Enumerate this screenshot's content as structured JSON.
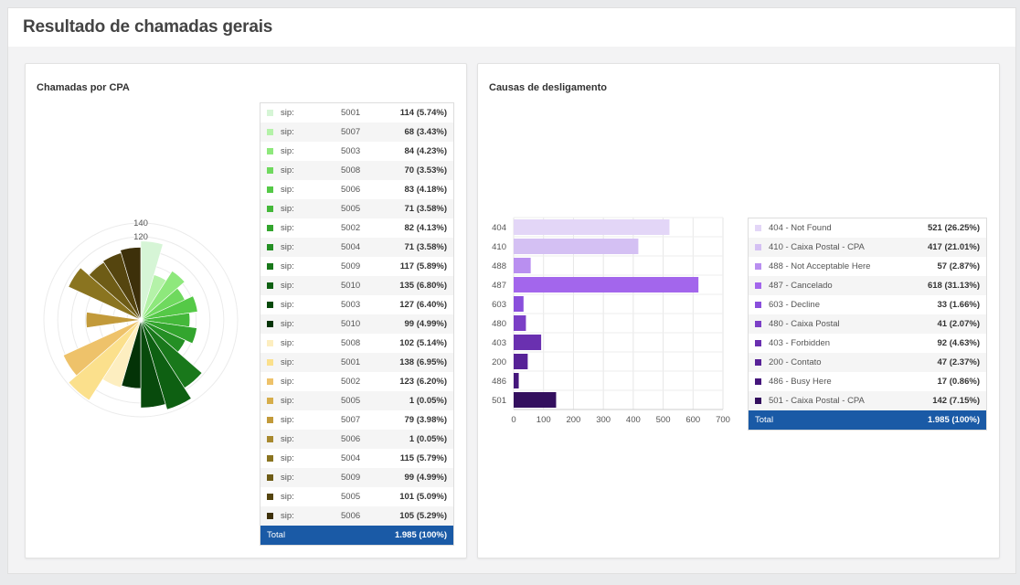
{
  "header": {
    "title": "Resultado de chamadas gerais"
  },
  "colors": {
    "total_bg": "#1a5aa6"
  },
  "cpa_card": {
    "title": "Chamadas por CPA",
    "total_label": "Total",
    "total_value": "1.985 (100%)",
    "rows": [
      {
        "proto": "sip:",
        "ext": "5001",
        "value": "114 (5.74%)",
        "color": "#d6f5d6"
      },
      {
        "proto": "sip:",
        "ext": "5007",
        "value": "68 (3.43%)",
        "color": "#b4f2a8"
      },
      {
        "proto": "sip:",
        "ext": "5003",
        "value": "84 (4.23%)",
        "color": "#8ee87c"
      },
      {
        "proto": "sip:",
        "ext": "5008",
        "value": "70 (3.53%)",
        "color": "#6fd95e"
      },
      {
        "proto": "sip:",
        "ext": "5006",
        "value": "83 (4.18%)",
        "color": "#55c947"
      },
      {
        "proto": "sip:",
        "ext": "5005",
        "value": "71 (3.58%)",
        "color": "#44b83a"
      },
      {
        "proto": "sip:",
        "ext": "5002",
        "value": "82 (4.13%)",
        "color": "#33a52e"
      },
      {
        "proto": "sip:",
        "ext": "5004",
        "value": "71 (3.58%)",
        "color": "#248f24"
      },
      {
        "proto": "sip:",
        "ext": "5009",
        "value": "117 (5.89%)",
        "color": "#19781b"
      },
      {
        "proto": "sip:",
        "ext": "5010",
        "value": "135 (6.80%)",
        "color": "#0e6012"
      },
      {
        "proto": "sip:",
        "ext": "5003",
        "value": "127 (6.40%)",
        "color": "#084a0c"
      },
      {
        "proto": "sip:",
        "ext": "5010",
        "value": "99 (4.99%)",
        "color": "#043307"
      },
      {
        "proto": "sip:",
        "ext": "5008",
        "value": "102 (5.14%)",
        "color": "#fdeec0"
      },
      {
        "proto": "sip:",
        "ext": "5001",
        "value": "138 (6.95%)",
        "color": "#fbe08c"
      },
      {
        "proto": "sip:",
        "ext": "5002",
        "value": "123 (6.20%)",
        "color": "#eec26a"
      },
      {
        "proto": "sip:",
        "ext": "5005",
        "value": "1 (0.05%)",
        "color": "#d6ad4a"
      },
      {
        "proto": "sip:",
        "ext": "5007",
        "value": "79 (3.98%)",
        "color": "#c29a3a"
      },
      {
        "proto": "sip:",
        "ext": "5006",
        "value": "1 (0.05%)",
        "color": "#a8892e"
      },
      {
        "proto": "sip:",
        "ext": "5004",
        "value": "115 (5.79%)",
        "color": "#8a7420"
      },
      {
        "proto": "sip:",
        "ext": "5009",
        "value": "99 (4.99%)",
        "color": "#6e5c16"
      },
      {
        "proto": "sip:",
        "ext": "5005",
        "value": "101 (5.09%)",
        "color": "#55450f"
      },
      {
        "proto": "sip:",
        "ext": "5006",
        "value": "105 (5.29%)",
        "color": "#3d300a"
      }
    ]
  },
  "hangup_card": {
    "title": "Causas de desligamento",
    "total_label": "Total",
    "total_value": "1.985 (100%)",
    "rows": [
      {
        "label": "404 - Not Found",
        "value": "521 (26.25%)",
        "color": "#e3d6f7"
      },
      {
        "label": "410 - Caixa Postal - CPA",
        "value": "417 (21.01%)",
        "color": "#d4c0f3"
      },
      {
        "label": "488 - Not Acceptable Here",
        "value": "57 (2.87%)",
        "color": "#b98ff0"
      },
      {
        "label": "487 - Cancelado",
        "value": "618 (31.13%)",
        "color": "#a366ec"
      },
      {
        "label": "603 - Decline",
        "value": "33 (1.66%)",
        "color": "#8a4fdc"
      },
      {
        "label": "480 - Caixa Postal",
        "value": "41 (2.07%)",
        "color": "#7b3fc6"
      },
      {
        "label": "403 - Forbidden",
        "value": "92 (4.63%)",
        "color": "#6a30b0"
      },
      {
        "label": "200 - Contato",
        "value": "47 (2.37%)",
        "color": "#572297"
      },
      {
        "label": "486 - Busy Here",
        "value": "17 (0.86%)",
        "color": "#45177c"
      },
      {
        "label": "501 - Caixa Postal - CPA",
        "value": "142 (7.15%)",
        "color": "#330f5e"
      }
    ]
  },
  "chart_data": [
    {
      "type": "polar-bar",
      "radial_ticks": [
        "120",
        "140"
      ],
      "series": [
        {
          "value": 114,
          "color": "#d6f5d6"
        },
        {
          "value": 68,
          "color": "#b4f2a8"
        },
        {
          "value": 84,
          "color": "#8ee87c"
        },
        {
          "value": 70,
          "color": "#6fd95e"
        },
        {
          "value": 83,
          "color": "#55c947"
        },
        {
          "value": 71,
          "color": "#44b83a"
        },
        {
          "value": 82,
          "color": "#33a52e"
        },
        {
          "value": 71,
          "color": "#248f24"
        },
        {
          "value": 117,
          "color": "#19781b"
        },
        {
          "value": 135,
          "color": "#0e6012"
        },
        {
          "value": 127,
          "color": "#084a0c"
        },
        {
          "value": 99,
          "color": "#043307"
        },
        {
          "value": 102,
          "color": "#fdeec0"
        },
        {
          "value": 138,
          "color": "#fbe08c"
        },
        {
          "value": 123,
          "color": "#eec26a"
        },
        {
          "value": 1,
          "color": "#d6ad4a"
        },
        {
          "value": 79,
          "color": "#c29a3a"
        },
        {
          "value": 1,
          "color": "#a8892e"
        },
        {
          "value": 115,
          "color": "#8a7420"
        },
        {
          "value": 99,
          "color": "#6e5c16"
        },
        {
          "value": 101,
          "color": "#55450f"
        },
        {
          "value": 105,
          "color": "#3d300a"
        }
      ],
      "rmax": 140
    },
    {
      "type": "bar",
      "orientation": "horizontal",
      "categories": [
        "404",
        "410",
        "488",
        "487",
        "603",
        "480",
        "403",
        "200",
        "486",
        "501"
      ],
      "values": [
        521,
        417,
        57,
        618,
        33,
        41,
        92,
        47,
        17,
        142
      ],
      "colors": [
        "#e3d6f7",
        "#d4c0f3",
        "#b98ff0",
        "#a366ec",
        "#8a4fdc",
        "#7b3fc6",
        "#6a30b0",
        "#572297",
        "#45177c",
        "#330f5e"
      ],
      "xticks": [
        "0",
        "100",
        "200",
        "300",
        "400",
        "500",
        "600",
        "700"
      ],
      "xlim": [
        0,
        700
      ],
      "grid": true
    }
  ]
}
